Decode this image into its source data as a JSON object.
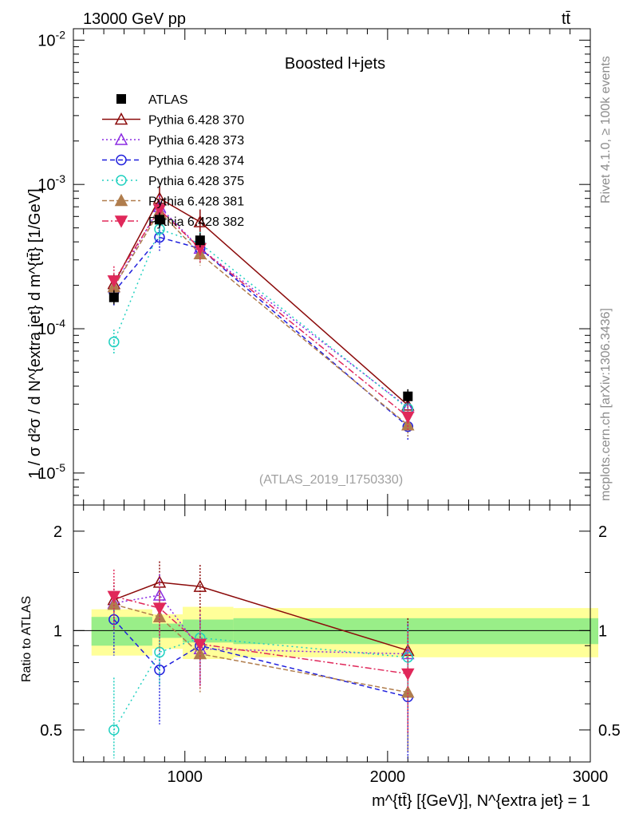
{
  "header": {
    "left": "13000 GeV pp",
    "right": "tt̄"
  },
  "side": {
    "rivet": "Rivet 4.1.0, ≥ 100k events",
    "mcplots": "mcplots.cern.ch [arXiv:1306.3436]"
  },
  "chart_data": {
    "type": "line",
    "title": "Boosted l+jets",
    "analysis_id": "(ATLAS_2019_I1750330)",
    "ylabel": "1 / σ d²σ / d N^{extra jet} d m^{tt̄} [1/GeV]",
    "xlabel": "m^{tt̄} [{GeV}], N^{extra jet} = 1",
    "ratio_ylabel": "Ratio to ATLAS",
    "xlim": [
      450,
      3000
    ],
    "ylim": [
      6e-06,
      0.012
    ],
    "ratio_ylim": [
      0.4,
      2.4
    ],
    "x_ticks": [
      "1000",
      "2000",
      "3000"
    ],
    "y_ticks": [
      "10^-5",
      "10^-4",
      "10^-3",
      "10^-2"
    ],
    "ratio_ticks": [
      "0.5",
      "1",
      "2"
    ],
    "bins": [
      [
        500,
        800
      ],
      [
        800,
        950
      ],
      [
        950,
        1200
      ],
      [
        1200,
        3000
      ]
    ],
    "x": [
      650,
      875,
      1075,
      2100
    ],
    "data": {
      "name": "ATLAS",
      "values": [
        0.000165,
        0.00057,
        0.00041,
        3.4e-05
      ],
      "band_inner": [
        0.1,
        0.05,
        0.08,
        0.09
      ],
      "band_outer": [
        0.16,
        0.12,
        0.18,
        0.17
      ]
    },
    "series": [
      {
        "name": "Pythia 6.428 370",
        "color": "#8b0a0a",
        "dash": "",
        "marker": "triangle-open",
        "values": [
          0.000205,
          0.0008,
          0.00055,
          2.95e-05
        ],
        "ratio": [
          1.24,
          1.4,
          1.36,
          0.87
        ],
        "ratio_err": [
          0.16,
          0.22,
          0.22,
          0.22
        ]
      },
      {
        "name": "Pythia 6.428 373",
        "color": "#8b2be2",
        "dash": "2,3",
        "marker": "triangle-open",
        "values": [
          0.000195,
          0.0007,
          0.00036,
          2.85e-05
        ],
        "ratio": [
          1.21,
          1.28,
          0.88,
          0.85
        ],
        "ratio_err": [
          0.16,
          0.2,
          0.2,
          0.2
        ]
      },
      {
        "name": "Pythia 6.428 374",
        "color": "#1f1fdd",
        "dash": "6,4",
        "marker": "circle-open",
        "values": [
          0.00018,
          0.00043,
          0.00036,
          2.1e-05
        ],
        "ratio": [
          1.08,
          0.76,
          0.9,
          0.63
        ],
        "ratio_err": [
          0.24,
          0.24,
          0.22,
          0.25
        ]
      },
      {
        "name": "Pythia 6.428 375",
        "color": "#20d0c0",
        "dash": "2,4",
        "marker": "circle-open",
        "values": [
          8.1e-05,
          0.00049,
          0.00039,
          2.8e-05
        ],
        "ratio": [
          0.5,
          0.86,
          0.95,
          0.83
        ],
        "ratio_err": [
          0.22,
          0.18,
          0.2,
          0.2
        ]
      },
      {
        "name": "Pythia 6.428 381",
        "color": "#b07d4d",
        "dash": "6,3",
        "marker": "triangle-filled",
        "values": [
          0.000195,
          0.00065,
          0.00033,
          2.15e-05
        ],
        "ratio": [
          1.2,
          1.1,
          0.85,
          0.65
        ],
        "ratio_err": [
          0.2,
          0.24,
          0.2,
          0.22
        ]
      },
      {
        "name": "Pythia 6.428 382",
        "color": "#e0285a",
        "dash": "8,3,2,3",
        "marker": "triangle-down-filled",
        "values": [
          0.000215,
          0.00067,
          0.00036,
          2.45e-05
        ],
        "ratio": [
          1.27,
          1.17,
          0.91,
          0.74
        ],
        "ratio_err": [
          0.26,
          0.22,
          0.24,
          0.25
        ]
      }
    ]
  }
}
